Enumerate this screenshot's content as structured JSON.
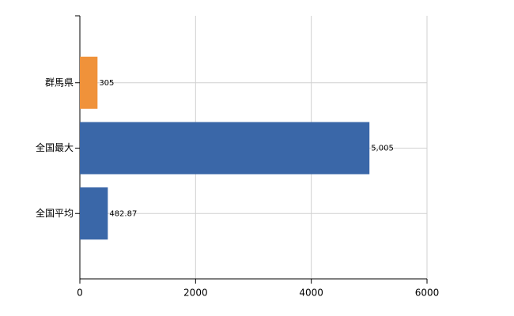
{
  "chart_data": {
    "type": "bar",
    "orientation": "horizontal",
    "categories": [
      "群馬県",
      "全国最大",
      "全国平均"
    ],
    "values": [
      305,
      5005,
      482.87
    ],
    "value_labels": [
      "305",
      "5,005",
      "482.87"
    ],
    "colors": [
      "#f0923a",
      "#3a67a8",
      "#3a67a8"
    ],
    "xlim": [
      0,
      6000
    ],
    "xticks": [
      0,
      2000,
      4000,
      6000
    ],
    "grid": true
  }
}
